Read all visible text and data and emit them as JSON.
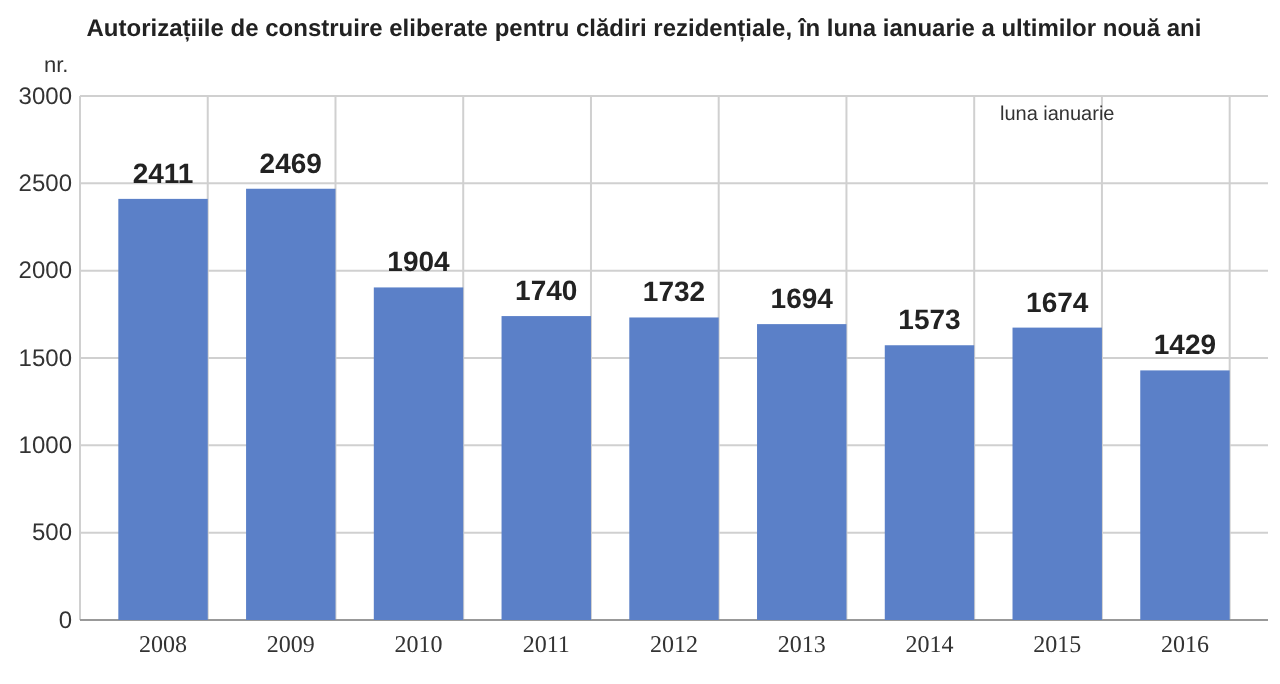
{
  "chart_data": {
    "type": "bar",
    "title": "Autorizațiile de construire eliberate pentru clădiri rezidențiale, în luna ianuarie a ultimilor nouă ani",
    "ylabel": "nr.",
    "categories": [
      "2008",
      "2009",
      "2010",
      "2011",
      "2012",
      "2013",
      "2014",
      "2015",
      "2016"
    ],
    "values": [
      2411,
      2469,
      1904,
      1740,
      1732,
      1694,
      1573,
      1674,
      1429
    ],
    "color": "#5b80c8",
    "ylim": [
      0,
      3000
    ],
    "yticks": [
      0,
      500,
      1000,
      1500,
      2000,
      2500,
      3000
    ],
    "grid": true,
    "data_labels": true,
    "annotations": [
      "luna ianuarie"
    ]
  }
}
